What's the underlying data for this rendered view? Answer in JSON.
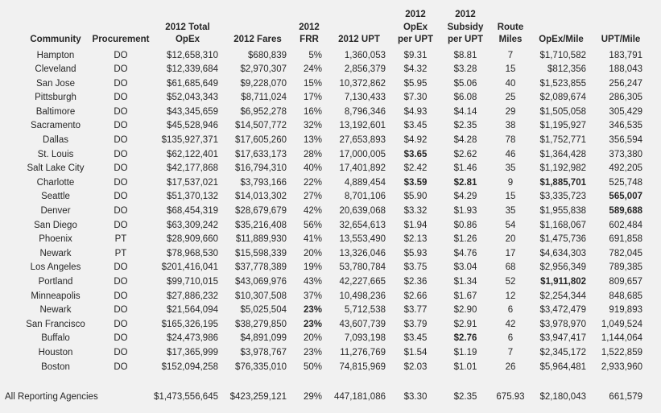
{
  "table": {
    "columns": [
      {
        "id": "community",
        "label_lines": [
          "Community"
        ]
      },
      {
        "id": "procurement",
        "label_lines": [
          "Procurement"
        ]
      },
      {
        "id": "opex",
        "label_lines": [
          "2012 Total",
          "OpEx"
        ]
      },
      {
        "id": "fares",
        "label_lines": [
          "2012 Fares"
        ]
      },
      {
        "id": "frr",
        "label_lines": [
          "2012",
          "FRR"
        ]
      },
      {
        "id": "upt",
        "label_lines": [
          "2012 UPT"
        ]
      },
      {
        "id": "opex_per_upt",
        "label_lines": [
          "2012",
          "OpEx",
          "per UPT"
        ]
      },
      {
        "id": "subsidy_per_upt",
        "label_lines": [
          "2012",
          "Subsidy",
          "per UPT"
        ]
      },
      {
        "id": "route_miles",
        "label_lines": [
          "Route",
          "Miles"
        ]
      },
      {
        "id": "opex_per_mile",
        "label_lines": [
          "OpEx/Mile"
        ]
      },
      {
        "id": "upt_per_mile",
        "label_lines": [
          "UPT/Mile"
        ]
      }
    ],
    "rows": [
      {
        "community": "Hampton",
        "procurement": "DO",
        "opex": "$12,658,310",
        "fares": "$680,839",
        "frr": "5%",
        "upt": "1,360,053",
        "opex_per_upt": "$9.31",
        "subsidy_per_upt": "$8.81",
        "route_miles": "7",
        "opex_per_mile": "$1,710,582",
        "upt_per_mile": "183,791",
        "bold": []
      },
      {
        "community": "Cleveland",
        "procurement": "DO",
        "opex": "$12,339,684",
        "fares": "$2,970,307",
        "frr": "24%",
        "upt": "2,856,379",
        "opex_per_upt": "$4.32",
        "subsidy_per_upt": "$3.28",
        "route_miles": "15",
        "opex_per_mile": "$812,356",
        "upt_per_mile": "188,043",
        "bold": []
      },
      {
        "community": "San Jose",
        "procurement": "DO",
        "opex": "$61,685,649",
        "fares": "$9,228,070",
        "frr": "15%",
        "upt": "10,372,862",
        "opex_per_upt": "$5.95",
        "subsidy_per_upt": "$5.06",
        "route_miles": "40",
        "opex_per_mile": "$1,523,855",
        "upt_per_mile": "256,247",
        "bold": []
      },
      {
        "community": "Pittsburgh",
        "procurement": "DO",
        "opex": "$52,043,343",
        "fares": "$8,711,024",
        "frr": "17%",
        "upt": "7,130,433",
        "opex_per_upt": "$7.30",
        "subsidy_per_upt": "$6.08",
        "route_miles": "25",
        "opex_per_mile": "$2,089,674",
        "upt_per_mile": "286,305",
        "bold": []
      },
      {
        "community": "Baltimore",
        "procurement": "DO",
        "opex": "$43,345,659",
        "fares": "$6,952,278",
        "frr": "16%",
        "upt": "8,796,346",
        "opex_per_upt": "$4.93",
        "subsidy_per_upt": "$4.14",
        "route_miles": "29",
        "opex_per_mile": "$1,505,058",
        "upt_per_mile": "305,429",
        "bold": []
      },
      {
        "community": "Sacramento",
        "procurement": "DO",
        "opex": "$45,528,946",
        "fares": "$14,507,772",
        "frr": "32%",
        "upt": "13,192,601",
        "opex_per_upt": "$3.45",
        "subsidy_per_upt": "$2.35",
        "route_miles": "38",
        "opex_per_mile": "$1,195,927",
        "upt_per_mile": "346,535",
        "bold": []
      },
      {
        "community": "Dallas",
        "procurement": "DO",
        "opex": "$135,927,371",
        "fares": "$17,605,260",
        "frr": "13%",
        "upt": "27,653,893",
        "opex_per_upt": "$4.92",
        "subsidy_per_upt": "$4.28",
        "route_miles": "78",
        "opex_per_mile": "$1,752,771",
        "upt_per_mile": "356,594",
        "bold": []
      },
      {
        "community": "St. Louis",
        "procurement": "DO",
        "opex": "$62,122,401",
        "fares": "$17,633,173",
        "frr": "28%",
        "upt": "17,000,005",
        "opex_per_upt": "$3.65",
        "subsidy_per_upt": "$2.62",
        "route_miles": "46",
        "opex_per_mile": "$1,364,428",
        "upt_per_mile": "373,380",
        "bold": [
          "opex_per_upt"
        ]
      },
      {
        "community": "Salt Lake City",
        "procurement": "DO",
        "opex": "$42,177,868",
        "fares": "$16,794,310",
        "frr": "40%",
        "upt": "17,401,892",
        "opex_per_upt": "$2.42",
        "subsidy_per_upt": "$1.46",
        "route_miles": "35",
        "opex_per_mile": "$1,192,982",
        "upt_per_mile": "492,205",
        "bold": []
      },
      {
        "community": "Charlotte",
        "procurement": "DO",
        "opex": "$17,537,021",
        "fares": "$3,793,166",
        "frr": "22%",
        "upt": "4,889,454",
        "opex_per_upt": "$3.59",
        "subsidy_per_upt": "$2.81",
        "route_miles": "9",
        "opex_per_mile": "$1,885,701",
        "upt_per_mile": "525,748",
        "bold": [
          "opex_per_upt",
          "subsidy_per_upt",
          "opex_per_mile"
        ]
      },
      {
        "community": "Seattle",
        "procurement": "DO",
        "opex": "$51,370,132",
        "fares": "$14,013,302",
        "frr": "27%",
        "upt": "8,701,106",
        "opex_per_upt": "$5.90",
        "subsidy_per_upt": "$4.29",
        "route_miles": "15",
        "opex_per_mile": "$3,335,723",
        "upt_per_mile": "565,007",
        "bold": [
          "upt_per_mile"
        ]
      },
      {
        "community": "Denver",
        "procurement": "DO",
        "opex": "$68,454,319",
        "fares": "$28,679,679",
        "frr": "42%",
        "upt": "20,639,068",
        "opex_per_upt": "$3.32",
        "subsidy_per_upt": "$1.93",
        "route_miles": "35",
        "opex_per_mile": "$1,955,838",
        "upt_per_mile": "589,688",
        "bold": [
          "upt_per_mile"
        ]
      },
      {
        "community": "San Diego",
        "procurement": "DO",
        "opex": "$63,309,242",
        "fares": "$35,216,408",
        "frr": "56%",
        "upt": "32,654,613",
        "opex_per_upt": "$1.94",
        "subsidy_per_upt": "$0.86",
        "route_miles": "54",
        "opex_per_mile": "$1,168,067",
        "upt_per_mile": "602,484",
        "bold": []
      },
      {
        "community": "Phoenix",
        "procurement": "PT",
        "opex": "$28,909,660",
        "fares": "$11,889,930",
        "frr": "41%",
        "upt": "13,553,490",
        "opex_per_upt": "$2.13",
        "subsidy_per_upt": "$1.26",
        "route_miles": "20",
        "opex_per_mile": "$1,475,736",
        "upt_per_mile": "691,858",
        "bold": []
      },
      {
        "community": "Newark",
        "procurement": "PT",
        "opex": "$78,968,530",
        "fares": "$15,598,339",
        "frr": "20%",
        "upt": "13,326,046",
        "opex_per_upt": "$5.93",
        "subsidy_per_upt": "$4.76",
        "route_miles": "17",
        "opex_per_mile": "$4,634,303",
        "upt_per_mile": "782,045",
        "bold": []
      },
      {
        "community": "Los Angeles",
        "procurement": "DO",
        "opex": "$201,416,041",
        "fares": "$37,778,389",
        "frr": "19%",
        "upt": "53,780,784",
        "opex_per_upt": "$3.75",
        "subsidy_per_upt": "$3.04",
        "route_miles": "68",
        "opex_per_mile": "$2,956,349",
        "upt_per_mile": "789,385",
        "bold": []
      },
      {
        "community": "Portland",
        "procurement": "DO",
        "opex": "$99,710,015",
        "fares": "$43,069,976",
        "frr": "43%",
        "upt": "42,227,665",
        "opex_per_upt": "$2.36",
        "subsidy_per_upt": "$1.34",
        "route_miles": "52",
        "opex_per_mile": "$1,911,802",
        "upt_per_mile": "809,657",
        "bold": [
          "opex_per_mile"
        ]
      },
      {
        "community": "Minneapolis",
        "procurement": "DO",
        "opex": "$27,886,232",
        "fares": "$10,307,508",
        "frr": "37%",
        "upt": "10,498,236",
        "opex_per_upt": "$2.66",
        "subsidy_per_upt": "$1.67",
        "route_miles": "12",
        "opex_per_mile": "$2,254,344",
        "upt_per_mile": "848,685",
        "bold": []
      },
      {
        "community": "Newark",
        "procurement": "DO",
        "opex": "$21,564,094",
        "fares": "$5,025,504",
        "frr": "23%",
        "upt": "5,712,538",
        "opex_per_upt": "$3.77",
        "subsidy_per_upt": "$2.90",
        "route_miles": "6",
        "opex_per_mile": "$3,472,479",
        "upt_per_mile": "919,893",
        "bold": [
          "frr"
        ]
      },
      {
        "community": "San Francisco",
        "procurement": "DO",
        "opex": "$165,326,195",
        "fares": "$38,279,850",
        "frr": "23%",
        "upt": "43,607,739",
        "opex_per_upt": "$3.79",
        "subsidy_per_upt": "$2.91",
        "route_miles": "42",
        "opex_per_mile": "$3,978,970",
        "upt_per_mile": "1,049,524",
        "bold": [
          "frr"
        ]
      },
      {
        "community": "Buffalo",
        "procurement": "DO",
        "opex": "$24,473,986",
        "fares": "$4,891,099",
        "frr": "20%",
        "upt": "7,093,198",
        "opex_per_upt": "$3.45",
        "subsidy_per_upt": "$2.76",
        "route_miles": "6",
        "opex_per_mile": "$3,947,417",
        "upt_per_mile": "1,144,064",
        "bold": [
          "subsidy_per_upt"
        ]
      },
      {
        "community": "Houston",
        "procurement": "DO",
        "opex": "$17,365,999",
        "fares": "$3,978,767",
        "frr": "23%",
        "upt": "11,276,769",
        "opex_per_upt": "$1.54",
        "subsidy_per_upt": "$1.19",
        "route_miles": "7",
        "opex_per_mile": "$2,345,172",
        "upt_per_mile": "1,522,859",
        "bold": []
      },
      {
        "community": "Boston",
        "procurement": "DO",
        "opex": "$152,094,258",
        "fares": "$76,335,010",
        "frr": "50%",
        "upt": "74,815,969",
        "opex_per_upt": "$2.03",
        "subsidy_per_upt": "$1.01",
        "route_miles": "26",
        "opex_per_mile": "$5,964,481",
        "upt_per_mile": "2,933,960",
        "bold": []
      }
    ],
    "totals": {
      "label": "All Reporting Agencies",
      "opex": "$1,473,556,645",
      "fares": "$423,259,121",
      "frr": "29%",
      "upt": "447,181,086",
      "opex_per_upt": "$3.30",
      "subsidy_per_upt": "$2.35",
      "route_miles": "675.93",
      "opex_per_mile": "$2,180,043",
      "upt_per_mile": "661,579"
    }
  }
}
